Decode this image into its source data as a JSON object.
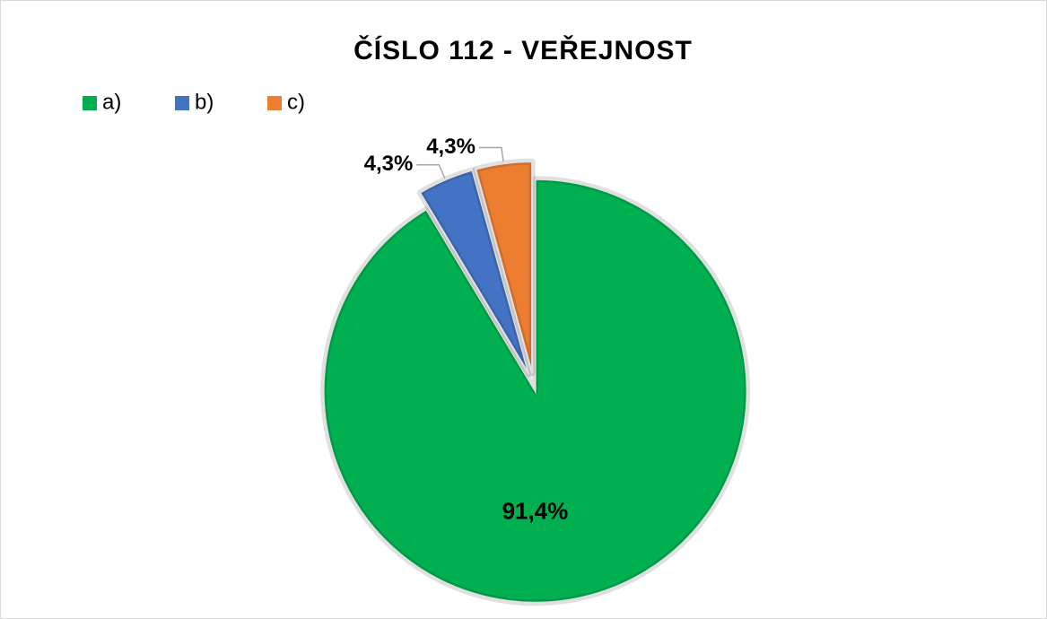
{
  "chart_data": {
    "type": "pie",
    "title": "ČÍSLO 112 - VEŘEJNOST",
    "categories": [
      "a)",
      "b)",
      "c)"
    ],
    "values": [
      91.4,
      4.3,
      4.3
    ],
    "value_labels": [
      "91,4%",
      "4,3%",
      "4,3%"
    ],
    "colors": [
      "#00b050",
      "#4472c4",
      "#ed7d31"
    ],
    "legend": "top-left"
  }
}
